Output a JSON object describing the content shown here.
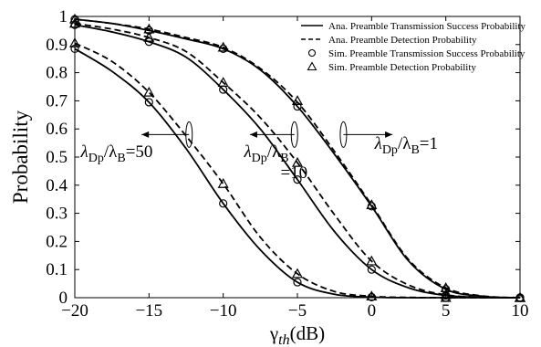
{
  "chart_data": {
    "type": "line",
    "xlabel": {
      "main": "γ",
      "sub": "th",
      "suffix": "(dB)"
    },
    "ylabel": "Probability",
    "xlim": [
      -20,
      10
    ],
    "ylim": [
      0,
      1
    ],
    "xticks": [
      "−20",
      "−15",
      "−10",
      "−5",
      "0",
      "5",
      "10"
    ],
    "xtick_values": [
      -20,
      -15,
      -10,
      -5,
      0,
      5,
      10
    ],
    "yticks": [
      "0",
      "0.1",
      "0.2",
      "0.3",
      "0.4",
      "0.5",
      "0.6",
      "0.7",
      "0.8",
      "0.9",
      "1"
    ],
    "ytick_values": [
      0,
      0.1,
      0.2,
      0.3,
      0.4,
      0.5,
      0.6,
      0.7,
      0.8,
      0.9,
      1
    ],
    "grid": false,
    "legend_position": "top-right",
    "legend": [
      {
        "label": "Ana. Preamble Transmission Success Probability",
        "style": "solid"
      },
      {
        "label": "Ana. Preamble Detection Probability",
        "style": "dashed"
      },
      {
        "label": "Sim. Preamble Transmission Success Probability",
        "style": "circle"
      },
      {
        "label": "Sim. Preamble Detection Probability",
        "style": "triangle"
      }
    ],
    "series": [
      {
        "group": "λDp/λB=1",
        "kind": "analytical",
        "metric": "transmission_success",
        "x": [
          -20,
          -17.5,
          -15,
          -12.5,
          -10,
          -7.5,
          -5,
          -2.5,
          0,
          2.5,
          5,
          7.5,
          10
        ],
        "y": [
          0.99,
          0.975,
          0.95,
          0.92,
          0.885,
          0.81,
          0.68,
          0.51,
          0.325,
          0.13,
          0.03,
          0.005,
          0.0
        ]
      },
      {
        "group": "λDp/λB=1",
        "kind": "analytical",
        "metric": "detection",
        "x": [
          -20,
          -17.5,
          -15,
          -12.5,
          -10,
          -7.5,
          -5,
          -2.5,
          0,
          2.5,
          5,
          7.5,
          10
        ],
        "y": [
          0.99,
          0.975,
          0.955,
          0.925,
          0.89,
          0.815,
          0.695,
          0.52,
          0.33,
          0.135,
          0.035,
          0.006,
          0.0
        ]
      },
      {
        "group": "λDp/λB=10",
        "kind": "analytical",
        "metric": "transmission_success",
        "x": [
          -20,
          -17.5,
          -15,
          -12.5,
          -10,
          -7.5,
          -5,
          -2.5,
          0,
          2.5,
          5,
          7.5,
          10
        ],
        "y": [
          0.97,
          0.945,
          0.91,
          0.855,
          0.74,
          0.6,
          0.42,
          0.235,
          0.1,
          0.035,
          0.008,
          0.001,
          0.0
        ]
      },
      {
        "group": "λDp/λB=10",
        "kind": "analytical",
        "metric": "detection",
        "x": [
          -20,
          -17.5,
          -15,
          -12.5,
          -10,
          -7.5,
          -5,
          -2.5,
          0,
          2.5,
          5,
          7.5,
          10
        ],
        "y": [
          0.975,
          0.955,
          0.925,
          0.875,
          0.765,
          0.64,
          0.48,
          0.295,
          0.13,
          0.045,
          0.01,
          0.002,
          0.0
        ]
      },
      {
        "group": "λDp/λB=50",
        "kind": "analytical",
        "metric": "transmission_success",
        "x": [
          -20,
          -17.5,
          -15,
          -12.5,
          -10,
          -7.5,
          -5,
          -2.5,
          0,
          2.5,
          5,
          7.5,
          10
        ],
        "y": [
          0.885,
          0.805,
          0.695,
          0.53,
          0.335,
          0.17,
          0.055,
          0.012,
          0.002,
          0.0,
          0.0,
          0.0,
          0.0
        ]
      },
      {
        "group": "λDp/λB=50",
        "kind": "analytical",
        "metric": "detection",
        "x": [
          -20,
          -17.5,
          -15,
          -12.5,
          -10,
          -7.5,
          -5,
          -2.5,
          0,
          2.5,
          5,
          7.5,
          10
        ],
        "y": [
          0.905,
          0.84,
          0.73,
          0.575,
          0.405,
          0.215,
          0.085,
          0.022,
          0.005,
          0.001,
          0.0,
          0.0,
          0.0
        ]
      },
      {
        "group": "λDp/λB=1",
        "kind": "simulation",
        "metric": "transmission_success",
        "marker": "circle",
        "x": [
          -20,
          -15,
          -10,
          -5,
          0,
          5,
          10
        ],
        "y": [
          0.99,
          0.95,
          0.885,
          0.68,
          0.325,
          0.03,
          0.0
        ]
      },
      {
        "group": "λDp/λB=1",
        "kind": "simulation",
        "metric": "detection",
        "marker": "triangle",
        "x": [
          -20,
          -15,
          -10,
          -5,
          0,
          5,
          10
        ],
        "y": [
          0.99,
          0.955,
          0.89,
          0.7,
          0.33,
          0.035,
          0.0
        ]
      },
      {
        "group": "λDp/λB=10",
        "kind": "simulation",
        "metric": "transmission_success",
        "marker": "circle",
        "x": [
          -20,
          -15,
          -10,
          -5,
          0,
          5,
          10
        ],
        "y": [
          0.97,
          0.91,
          0.74,
          0.42,
          0.1,
          0.008,
          0.0
        ]
      },
      {
        "group": "λDp/λB=10",
        "kind": "simulation",
        "metric": "detection",
        "marker": "triangle",
        "x": [
          -20,
          -15,
          -10,
          -5,
          0,
          5,
          10
        ],
        "y": [
          0.975,
          0.925,
          0.765,
          0.48,
          0.13,
          0.01,
          0.0
        ]
      },
      {
        "group": "λDp/λB=50",
        "kind": "simulation",
        "metric": "transmission_success",
        "marker": "circle",
        "x": [
          -20,
          -15,
          -10,
          -5,
          0,
          5,
          10
        ],
        "y": [
          0.885,
          0.695,
          0.335,
          0.055,
          0.002,
          0.0,
          0.0
        ]
      },
      {
        "group": "λDp/λB=50",
        "kind": "simulation",
        "metric": "detection",
        "marker": "triangle",
        "x": [
          -20,
          -15,
          -10,
          -5,
          0,
          5,
          10
        ],
        "y": [
          0.905,
          0.73,
          0.405,
          0.085,
          0.005,
          0.0,
          0.0
        ]
      }
    ],
    "annotations": [
      {
        "label": "λDp/λB=50",
        "parts": [
          "λ",
          "Dp",
          "/λ",
          "B",
          "=50"
        ],
        "text_at": [
          -19.6,
          0.5
        ],
        "ellipse_at": [
          -12.3,
          0.58
        ],
        "arrow_to": [
          -15.5,
          0.58
        ]
      },
      {
        "label": "λDp/λB =10",
        "parts": [
          "λ",
          "Dp",
          "/λ",
          "B",
          ""
        ],
        "line2": "=10",
        "text_at": [
          -8.6,
          0.5
        ],
        "ellipse_at": [
          -5.2,
          0.58
        ],
        "arrow_to": [
          -8.2,
          0.58
        ]
      },
      {
        "label": "λDp/λB=1",
        "parts": [
          "λ",
          "Dp",
          "/λ",
          "B",
          "=1"
        ],
        "text_at": [
          0.2,
          0.53
        ],
        "ellipse_at": [
          -1.9,
          0.58
        ],
        "arrow_to": [
          1.4,
          0.58
        ]
      }
    ]
  }
}
